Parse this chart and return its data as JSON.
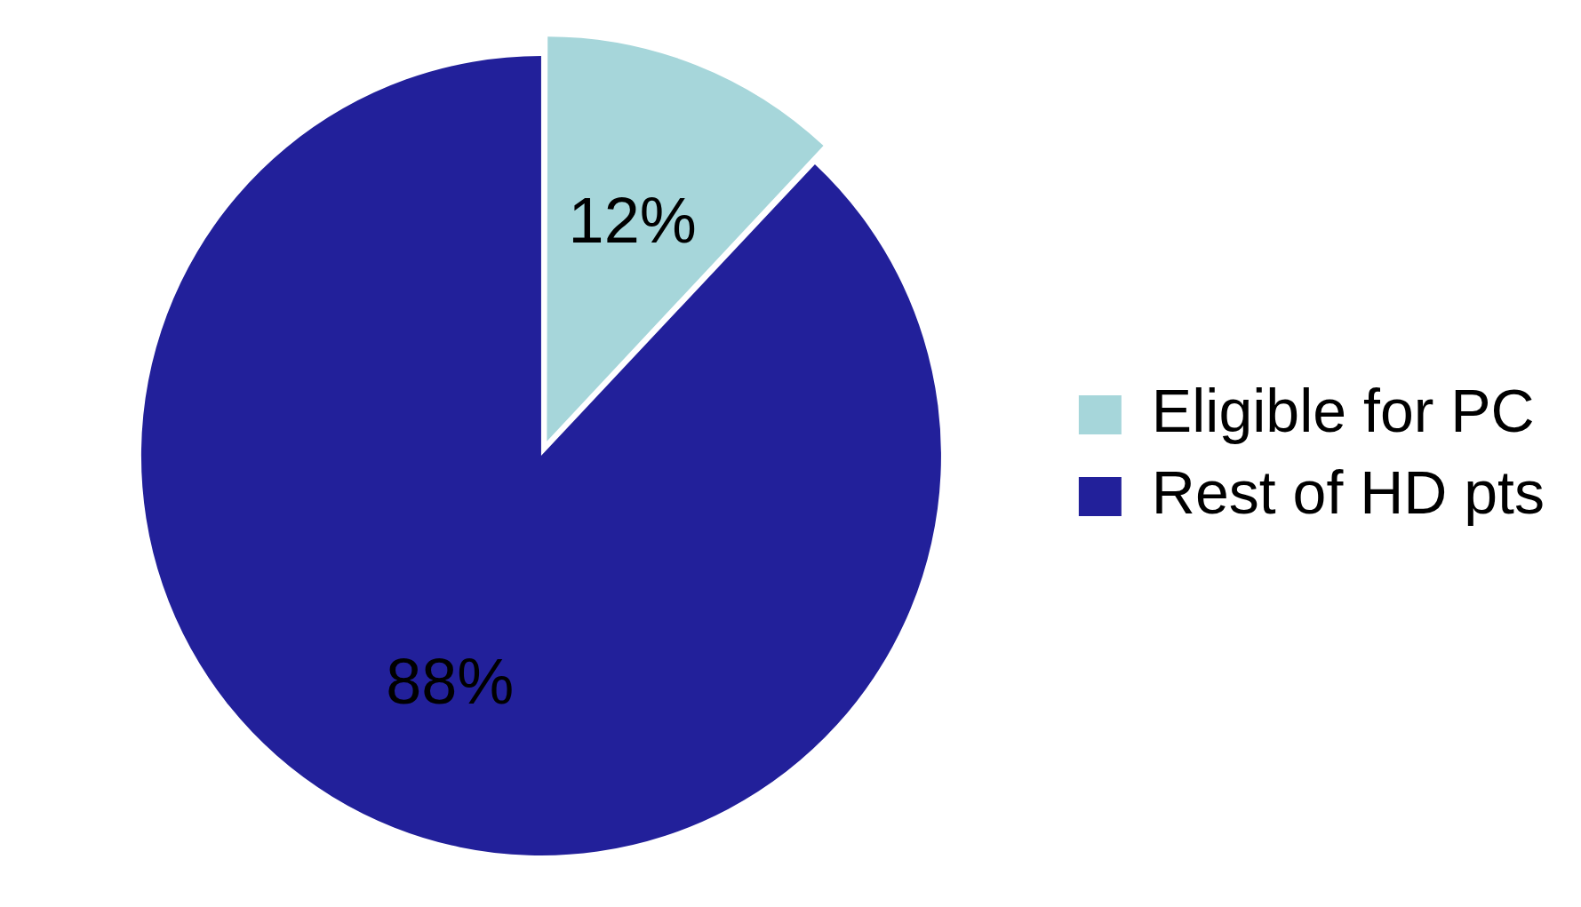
{
  "chart_data": {
    "type": "pie",
    "categories": [
      "Eligible for PC",
      "Rest of HD pts"
    ],
    "values": [
      12,
      88
    ],
    "colors": [
      "#a6d6da",
      "#22209a"
    ],
    "value_labels": [
      "12%",
      "88%"
    ],
    "legend": "right"
  }
}
